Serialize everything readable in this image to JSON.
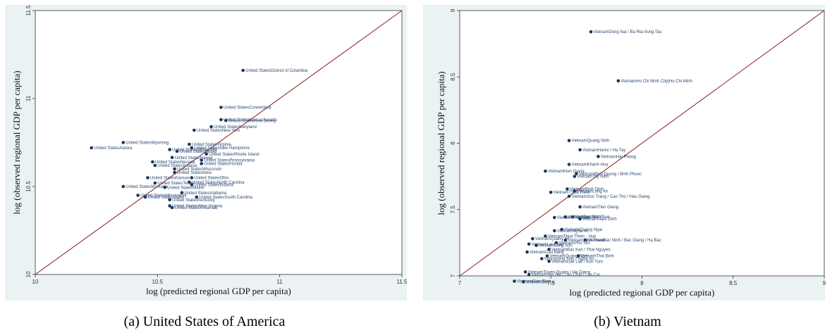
{
  "captions": {
    "left": "(a) United States of America",
    "right": "(b) Vietnam"
  },
  "colors": {
    "panel_bg": "#eaf2f3",
    "plot_bg": "#ffffff",
    "point": "#1b365d",
    "label": "#2a4870",
    "diagonal": "#8b1a1a"
  },
  "chart_data": [
    {
      "type": "scatter",
      "title": "",
      "xlabel": "log (predicted regional GDP per capita)",
      "ylabel": "log (observed regional GDP per capita)",
      "xlim": [
        10,
        11.5
      ],
      "ylim": [
        10,
        11.5
      ],
      "xticks": [
        "10",
        "10.5",
        "11",
        "11.5"
      ],
      "yticks": [
        "10",
        "10.5",
        "11",
        "11.5"
      ],
      "reference_line": "45-degree",
      "grid": false,
      "points": [
        {
          "label": "United StatesDistrict of Columbia",
          "x": 10.85,
          "y": 11.16
        },
        {
          "label": "United StatesConnecticut",
          "x": 10.76,
          "y": 10.95
        },
        {
          "label": "United StatesMassachusetts",
          "x": 10.76,
          "y": 10.88
        },
        {
          "label": "United StatesNew Jersey",
          "x": 10.78,
          "y": 10.875
        },
        {
          "label": "United StatesMaryland",
          "x": 10.72,
          "y": 10.84
        },
        {
          "label": "United StatesNew York",
          "x": 10.65,
          "y": 10.82
        },
        {
          "label": "United StatesWyoming",
          "x": 10.36,
          "y": 10.75
        },
        {
          "label": "United StatesAlaska",
          "x": 10.23,
          "y": 10.72
        },
        {
          "label": "United StatesVirginia",
          "x": 10.63,
          "y": 10.74
        },
        {
          "label": "United StatesNew Hampshire",
          "x": 10.64,
          "y": 10.72
        },
        {
          "label": "United StatesMinnesota",
          "x": 10.55,
          "y": 10.71
        },
        {
          "label": "United StatesIllinois",
          "x": 10.58,
          "y": 10.7
        },
        {
          "label": "United StatesRhode Island",
          "x": 10.7,
          "y": 10.685
        },
        {
          "label": "United StatesHawaii",
          "x": 10.56,
          "y": 10.665
        },
        {
          "label": "United StatesPennsylvania",
          "x": 10.68,
          "y": 10.65
        },
        {
          "label": "United StatesNevada",
          "x": 10.48,
          "y": 10.64
        },
        {
          "label": "United StatesFlorida",
          "x": 10.68,
          "y": 10.63
        },
        {
          "label": "United StatesIndiana",
          "x": 10.49,
          "y": 10.62
        },
        {
          "label": "United StatesWisconsin",
          "x": 10.57,
          "y": 10.6
        },
        {
          "label": "United StatesIowa",
          "x": 10.57,
          "y": 10.58
        },
        {
          "label": "United StatesKansas",
          "x": 10.46,
          "y": 10.55
        },
        {
          "label": "United StatesOhio",
          "x": 10.64,
          "y": 10.55
        },
        {
          "label": "United StatesNorth Carolina",
          "x": 10.63,
          "y": 10.525
        },
        {
          "label": "United StatesTexas",
          "x": 10.49,
          "y": 10.52
        },
        {
          "label": "United StatesIndiana",
          "x": 10.64,
          "y": 10.51
        },
        {
          "label": "United StatesMontana",
          "x": 10.36,
          "y": 10.5
        },
        {
          "label": "United StatesMaine",
          "x": 10.53,
          "y": 10.495
        },
        {
          "label": "United StatesAlabama",
          "x": 10.6,
          "y": 10.465
        },
        {
          "label": "United StatesMississippi",
          "x": 10.42,
          "y": 10.45
        },
        {
          "label": "United StatesSouth Carolina",
          "x": 10.66,
          "y": 10.44
        },
        {
          "label": "United StatesIdaho",
          "x": 10.45,
          "y": 10.44
        },
        {
          "label": "United StatesKentucky",
          "x": 10.55,
          "y": 10.425
        },
        {
          "label": "United StatesWest Virginia",
          "x": 10.55,
          "y": 10.39
        },
        {
          "label": "United StatesArkansas",
          "x": 10.56,
          "y": 10.38
        }
      ]
    },
    {
      "type": "scatter",
      "title": "",
      "xlabel": "log (predicted regional GDP per capita)",
      "ylabel": "log (observed regional GDP per capita)",
      "xlim": [
        7,
        9
      ],
      "ylim": [
        7,
        9
      ],
      "xticks": [
        "7",
        "7.5",
        "8",
        "8.5",
        "9"
      ],
      "yticks": [
        "7",
        "7.5",
        "8",
        "8.5",
        "9"
      ],
      "reference_line": "45-degree",
      "grid": false,
      "points": [
        {
          "label": "VietnamDong Nai / Ba Ria-Vung Tau",
          "x": 7.72,
          "y": 8.84
        },
        {
          "label": "VietnamHo Chi Minh City|Ho Chi Minh",
          "x": 7.87,
          "y": 8.47
        },
        {
          "label": "VietnamQuang Ninh",
          "x": 7.6,
          "y": 8.02
        },
        {
          "label": "VietnamHanoi / Ha Tay",
          "x": 7.66,
          "y": 7.95
        },
        {
          "label": "VietnamHai Phong",
          "x": 7.76,
          "y": 7.9
        },
        {
          "label": "VietnamKhanh Hoa",
          "x": 7.6,
          "y": 7.84
        },
        {
          "label": "VietnamKien Giang",
          "x": 7.47,
          "y": 7.79
        },
        {
          "label": "VietnamBinh Duong / Binh Phuoc",
          "x": 7.64,
          "y": 7.77
        },
        {
          "label": "VietnamTay Ninh",
          "x": 7.63,
          "y": 7.75
        },
        {
          "label": "VietnamBinh Dinh",
          "x": 7.59,
          "y": 7.655
        },
        {
          "label": "VietnamLong An",
          "x": 7.63,
          "y": 7.64
        },
        {
          "label": "VietnamThua Thien",
          "x": 7.5,
          "y": 7.63
        },
        {
          "label": "VietnamSoc Trang / Can Tho / Hau Giang",
          "x": 7.6,
          "y": 7.6
        },
        {
          "label": "VietnamTien Giang",
          "x": 7.66,
          "y": 7.52
        },
        {
          "label": "VietnamVinh Phuc",
          "x": 7.62,
          "y": 7.445
        },
        {
          "label": "VietnamThai Binh",
          "x": 7.52,
          "y": 7.44
        },
        {
          "label": "VietnamBac Ninh",
          "x": 7.58,
          "y": 7.445
        },
        {
          "label": "VietnamNam Dinh",
          "x": 7.66,
          "y": 7.43
        },
        {
          "label": "VietnamQuang Ngai",
          "x": 7.56,
          "y": 7.35
        },
        {
          "label": "VietnamNghe An",
          "x": 7.52,
          "y": 7.34
        },
        {
          "label": "VietnamThua Thien - Hue",
          "x": 7.47,
          "y": 7.3
        },
        {
          "label": "VietnamQuang Tri",
          "x": 7.4,
          "y": 7.28
        },
        {
          "label": "VietnamBac Ninh / Bac Giang / Ha Bac",
          "x": 7.69,
          "y": 7.27
        },
        {
          "label": "VietnamNinh Thuan",
          "x": 7.58,
          "y": 7.27
        },
        {
          "label": "VietnamPhu Yen",
          "x": 7.53,
          "y": 7.25
        },
        {
          "label": "VietnamLai Chau",
          "x": 7.38,
          "y": 7.24
        },
        {
          "label": "VietnamLang Son",
          "x": 7.42,
          "y": 7.23
        },
        {
          "label": "VietnamBac Kan / Thai Nguyen",
          "x": 7.49,
          "y": 7.2
        },
        {
          "label": "VietnamCao Bang",
          "x": 7.37,
          "y": 7.18
        },
        {
          "label": "VietnamQuang Nam",
          "x": 7.48,
          "y": 7.15
        },
        {
          "label": "VietnamThai Binh",
          "x": 7.65,
          "y": 7.15
        },
        {
          "label": "VietnamHa Tinh / Nghe An",
          "x": 7.45,
          "y": 7.13
        },
        {
          "label": "VietnamDak Lak / Kon Tum",
          "x": 7.49,
          "y": 7.11
        },
        {
          "label": "VietnamTuyen Quang / Ha Giang",
          "x": 7.36,
          "y": 7.03
        },
        {
          "label": "VietnamYen Bai / Lao Chai / Lao Cai",
          "x": 7.38,
          "y": 7.01
        },
        {
          "label": "VietnamDien Bien",
          "x": 7.3,
          "y": 6.96
        },
        {
          "label": "VietnamSon La",
          "x": 7.35,
          "y": 6.955
        }
      ]
    }
  ]
}
